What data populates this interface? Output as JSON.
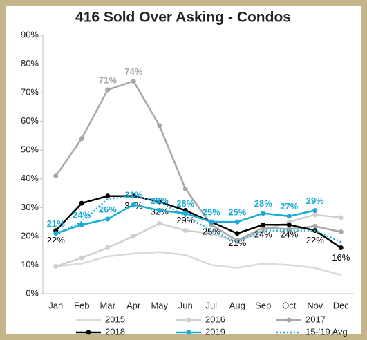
{
  "chart_data": {
    "type": "line",
    "title": "416 Sold Over Asking - Condos",
    "categories": [
      "Jan",
      "Feb",
      "Mar",
      "Apr",
      "May",
      "Jun",
      "Jul",
      "Aug",
      "Sep",
      "Oct",
      "Nov",
      "Dec"
    ],
    "ylim": [
      0,
      90
    ],
    "yticks": [
      {
        "value": 0,
        "label": "0%"
      },
      {
        "value": 10,
        "label": "10%"
      },
      {
        "value": 20,
        "label": "20%"
      },
      {
        "value": 30,
        "label": "30%"
      },
      {
        "value": 40,
        "label": "40%"
      },
      {
        "value": 50,
        "label": "50%"
      },
      {
        "value": 60,
        "label": "60%"
      },
      {
        "value": 70,
        "label": "70%"
      },
      {
        "value": 80,
        "label": "80%"
      },
      {
        "value": 90,
        "label": "90%"
      }
    ],
    "grid": false,
    "series": [
      {
        "name": "2015",
        "color": "#d9d9d9",
        "marker": false,
        "values": [
          9.5,
          10.5,
          13,
          14,
          14.5,
          13.5,
          10,
          9,
          10.5,
          10,
          9,
          6.5
        ]
      },
      {
        "name": "2016",
        "color": "#cfcfcf",
        "marker": true,
        "values": [
          9.5,
          12.5,
          16,
          20,
          24.5,
          22,
          21,
          18,
          22,
          25,
          27.5,
          26.5
        ]
      },
      {
        "name": "2017",
        "color": "#a6a6a6",
        "marker": true,
        "values": [
          41,
          54,
          71,
          74,
          58.5,
          36.5,
          24,
          18.5,
          23,
          22.5,
          23.5,
          21.5
        ],
        "value_labels": [
          null,
          null,
          "71%",
          "74%",
          null,
          null,
          null,
          null,
          null,
          null,
          null,
          null
        ]
      },
      {
        "name": "2018",
        "color": "#000000",
        "marker": true,
        "values": [
          22,
          31.5,
          34,
          34,
          32,
          29,
          25,
          21,
          24,
          24,
          22,
          16
        ],
        "value_labels": [
          "22%",
          null,
          null,
          "34%",
          "32%",
          "29%",
          "25%",
          "21%",
          "24%",
          "24%",
          "22%",
          "16%"
        ]
      },
      {
        "name": "2019",
        "color": "#1aabd6",
        "marker": true,
        "values": [
          21,
          24,
          26,
          31,
          29,
          28,
          25,
          25,
          28,
          27,
          29,
          null
        ],
        "value_labels": [
          "21%",
          "24%",
          "26%",
          "31%",
          "29%",
          "28%",
          "25%",
          "25%",
          "28%",
          "27%",
          "29%",
          null
        ]
      },
      {
        "name": "15-'19 Avg",
        "color": "#1aabd6",
        "marker": false,
        "dotted": true,
        "values": [
          20.5,
          25,
          33,
          34,
          32,
          27,
          22,
          18,
          22,
          22,
          22,
          18
        ]
      }
    ]
  }
}
